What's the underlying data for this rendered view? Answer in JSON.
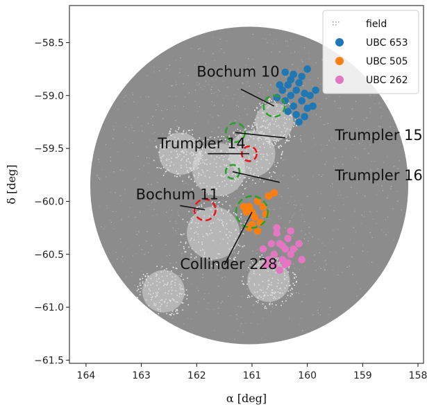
{
  "chart_data": {
    "type": "scatter",
    "title": "",
    "xlabel": "α [deg]",
    "ylabel": "δ [deg]",
    "xlim": [
      164.3,
      157.9
    ],
    "ylim": [
      -61.53,
      -58.15
    ],
    "xticks": [
      164,
      163,
      162,
      161,
      160,
      159,
      158
    ],
    "yticks": [
      -58.5,
      -59.0,
      -59.5,
      -60.0,
      -60.5,
      -61.0,
      -61.5
    ],
    "xtick_labels": [
      "164",
      "163",
      "162",
      "161",
      "160",
      "159",
      "158"
    ],
    "ytick_labels": [
      "−58.5",
      "−59.0",
      "−59.5",
      "−60.0",
      "−60.5",
      "−61.0",
      "−61.5"
    ],
    "grid": false,
    "legend": {
      "placement": "top-right"
    },
    "field": {
      "name": "field",
      "color": "#8c8c8c",
      "center": [
        161.05,
        -59.85
      ],
      "radius_deg_dec": 1.5,
      "light_patches": [
        {
          "ra": 161.0,
          "dec": -59.55,
          "r": 0.22
        },
        {
          "ra": 161.6,
          "dec": -59.7,
          "r": 0.25
        },
        {
          "ra": 162.3,
          "dec": -59.55,
          "r": 0.2
        },
        {
          "ra": 161.7,
          "dec": -60.3,
          "r": 0.25
        },
        {
          "ra": 160.7,
          "dec": -60.75,
          "r": 0.2
        },
        {
          "ra": 160.6,
          "dec": -59.25,
          "r": 0.18
        },
        {
          "ra": 162.6,
          "dec": -60.85,
          "r": 0.2
        }
      ]
    },
    "series": [
      {
        "name": "UBC 653",
        "color": "#1f77b4",
        "points": [
          [
            160.2,
            -58.95
          ],
          [
            160.3,
            -59.0
          ],
          [
            160.1,
            -59.05
          ],
          [
            160.35,
            -58.9
          ],
          [
            160.05,
            -58.98
          ],
          [
            160.25,
            -59.1
          ],
          [
            160.15,
            -58.88
          ],
          [
            160.4,
            -59.05
          ],
          [
            160.0,
            -59.12
          ],
          [
            160.3,
            -58.85
          ],
          [
            160.45,
            -58.95
          ],
          [
            159.95,
            -59.0
          ],
          [
            160.2,
            -59.18
          ],
          [
            160.1,
            -58.82
          ],
          [
            160.5,
            -58.9
          ],
          [
            159.9,
            -59.1
          ],
          [
            160.35,
            -59.15
          ],
          [
            160.05,
            -59.2
          ],
          [
            160.0,
            -58.75
          ],
          [
            160.25,
            -58.8
          ],
          [
            160.55,
            -59.02
          ],
          [
            159.85,
            -58.95
          ],
          [
            160.15,
            -59.25
          ],
          [
            160.4,
            -58.78
          ]
        ]
      },
      {
        "name": "UBC 505",
        "color": "#ff7f0e",
        "points": [
          [
            161.0,
            -60.1
          ],
          [
            161.05,
            -60.05
          ],
          [
            160.95,
            -60.15
          ],
          [
            160.9,
            -60.0
          ],
          [
            161.1,
            -60.1
          ],
          [
            160.8,
            -60.05
          ],
          [
            160.85,
            -60.2
          ],
          [
            161.0,
            -60.22
          ],
          [
            160.7,
            -59.95
          ],
          [
            160.75,
            -60.12
          ],
          [
            161.15,
            -60.05
          ],
          [
            160.6,
            -59.92
          ],
          [
            160.9,
            -60.28
          ],
          [
            161.05,
            -60.25
          ]
        ]
      },
      {
        "name": "UBC 262",
        "color": "#e377c2",
        "points": [
          [
            160.5,
            -60.4
          ],
          [
            160.4,
            -60.45
          ],
          [
            160.6,
            -60.5
          ],
          [
            160.45,
            -60.55
          ],
          [
            160.35,
            -60.35
          ],
          [
            160.55,
            -60.3
          ],
          [
            160.3,
            -60.5
          ],
          [
            160.65,
            -60.4
          ],
          [
            160.4,
            -60.6
          ],
          [
            160.5,
            -60.65
          ],
          [
            160.25,
            -60.45
          ],
          [
            160.7,
            -60.55
          ],
          [
            160.8,
            -60.45
          ],
          [
            160.15,
            -60.4
          ],
          [
            160.6,
            -60.6
          ],
          [
            160.35,
            -60.58
          ],
          [
            160.75,
            -60.6
          ],
          [
            160.1,
            -60.55
          ],
          [
            160.55,
            -60.25
          ],
          [
            160.3,
            -60.28
          ],
          [
            160.45,
            -60.42
          ]
        ]
      }
    ],
    "annotations": [
      {
        "label": "Bochum 10",
        "circle": [
          160.6,
          -59.1
        ],
        "r": 0.1,
        "color": "#2ca02c",
        "text_at": [
          162.0,
          -58.82
        ],
        "line_from": [
          161.2,
          -58.94
        ]
      },
      {
        "label": "Trumpler 15",
        "circle": [
          161.3,
          -59.35
        ],
        "r": 0.09,
        "color": "#2ca02c",
        "text_at": [
          159.5,
          -59.42
        ],
        "line_from": [
          160.4,
          -59.4
        ]
      },
      {
        "label": "Trumpler 14",
        "circle": [
          161.05,
          -59.55
        ],
        "r": 0.07,
        "color": "#e8161b",
        "text_at": [
          162.7,
          -59.5
        ],
        "line_from": [
          161.8,
          -59.55
        ]
      },
      {
        "label": "Trumpler 16",
        "circle": [
          161.35,
          -59.72
        ],
        "r": 0.065,
        "color": "#2ca02c",
        "text_at": [
          159.5,
          -59.8
        ],
        "line_from": [
          160.5,
          -59.82
        ]
      },
      {
        "label": "Bochum 11",
        "circle": [
          161.85,
          -60.08
        ],
        "r": 0.1,
        "color": "#e8161b",
        "text_at": [
          163.1,
          -59.98
        ],
        "line_from": [
          162.3,
          -60.04
        ]
      },
      {
        "label": "Collinder 228",
        "circle": [
          161.0,
          -60.1
        ],
        "r": 0.15,
        "color": "#2ca02c",
        "text_at": [
          162.3,
          -60.64
        ],
        "line_from": [
          161.5,
          -60.6
        ]
      }
    ]
  }
}
